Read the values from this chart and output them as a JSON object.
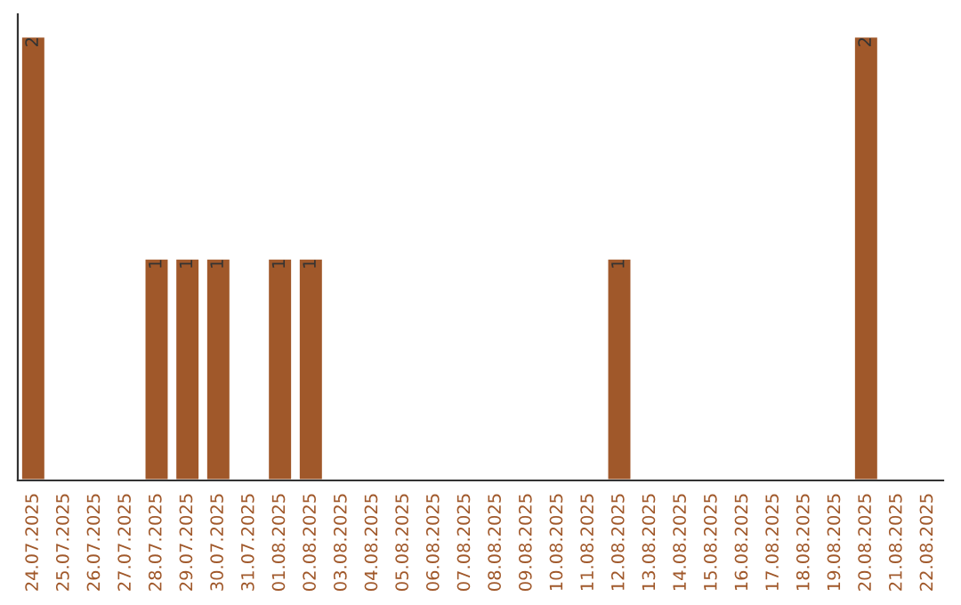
{
  "chart_data": {
    "type": "bar",
    "categories": [
      "24.07.2025",
      "25.07.2025",
      "26.07.2025",
      "27.07.2025",
      "28.07.2025",
      "29.07.2025",
      "30.07.2025",
      "31.07.2025",
      "01.08.2025",
      "02.08.2025",
      "03.08.2025",
      "04.08.2025",
      "05.08.2025",
      "06.08.2025",
      "07.08.2025",
      "08.08.2025",
      "09.08.2025",
      "10.08.2025",
      "11.08.2025",
      "12.08.2025",
      "13.08.2025",
      "14.08.2025",
      "15.08.2025",
      "16.08.2025",
      "17.08.2025",
      "18.08.2025",
      "19.08.2025",
      "20.08.2025",
      "21.08.2025",
      "22.08.2025"
    ],
    "values": [
      2,
      null,
      null,
      null,
      1,
      1,
      1,
      null,
      1,
      1,
      null,
      null,
      null,
      null,
      null,
      null,
      null,
      null,
      null,
      1,
      null,
      null,
      null,
      null,
      null,
      null,
      null,
      2,
      null,
      null
    ],
    "color": "#a0582a",
    "data_labels": true,
    "tick_labels": "x",
    "grid": false,
    "legend": false
  }
}
